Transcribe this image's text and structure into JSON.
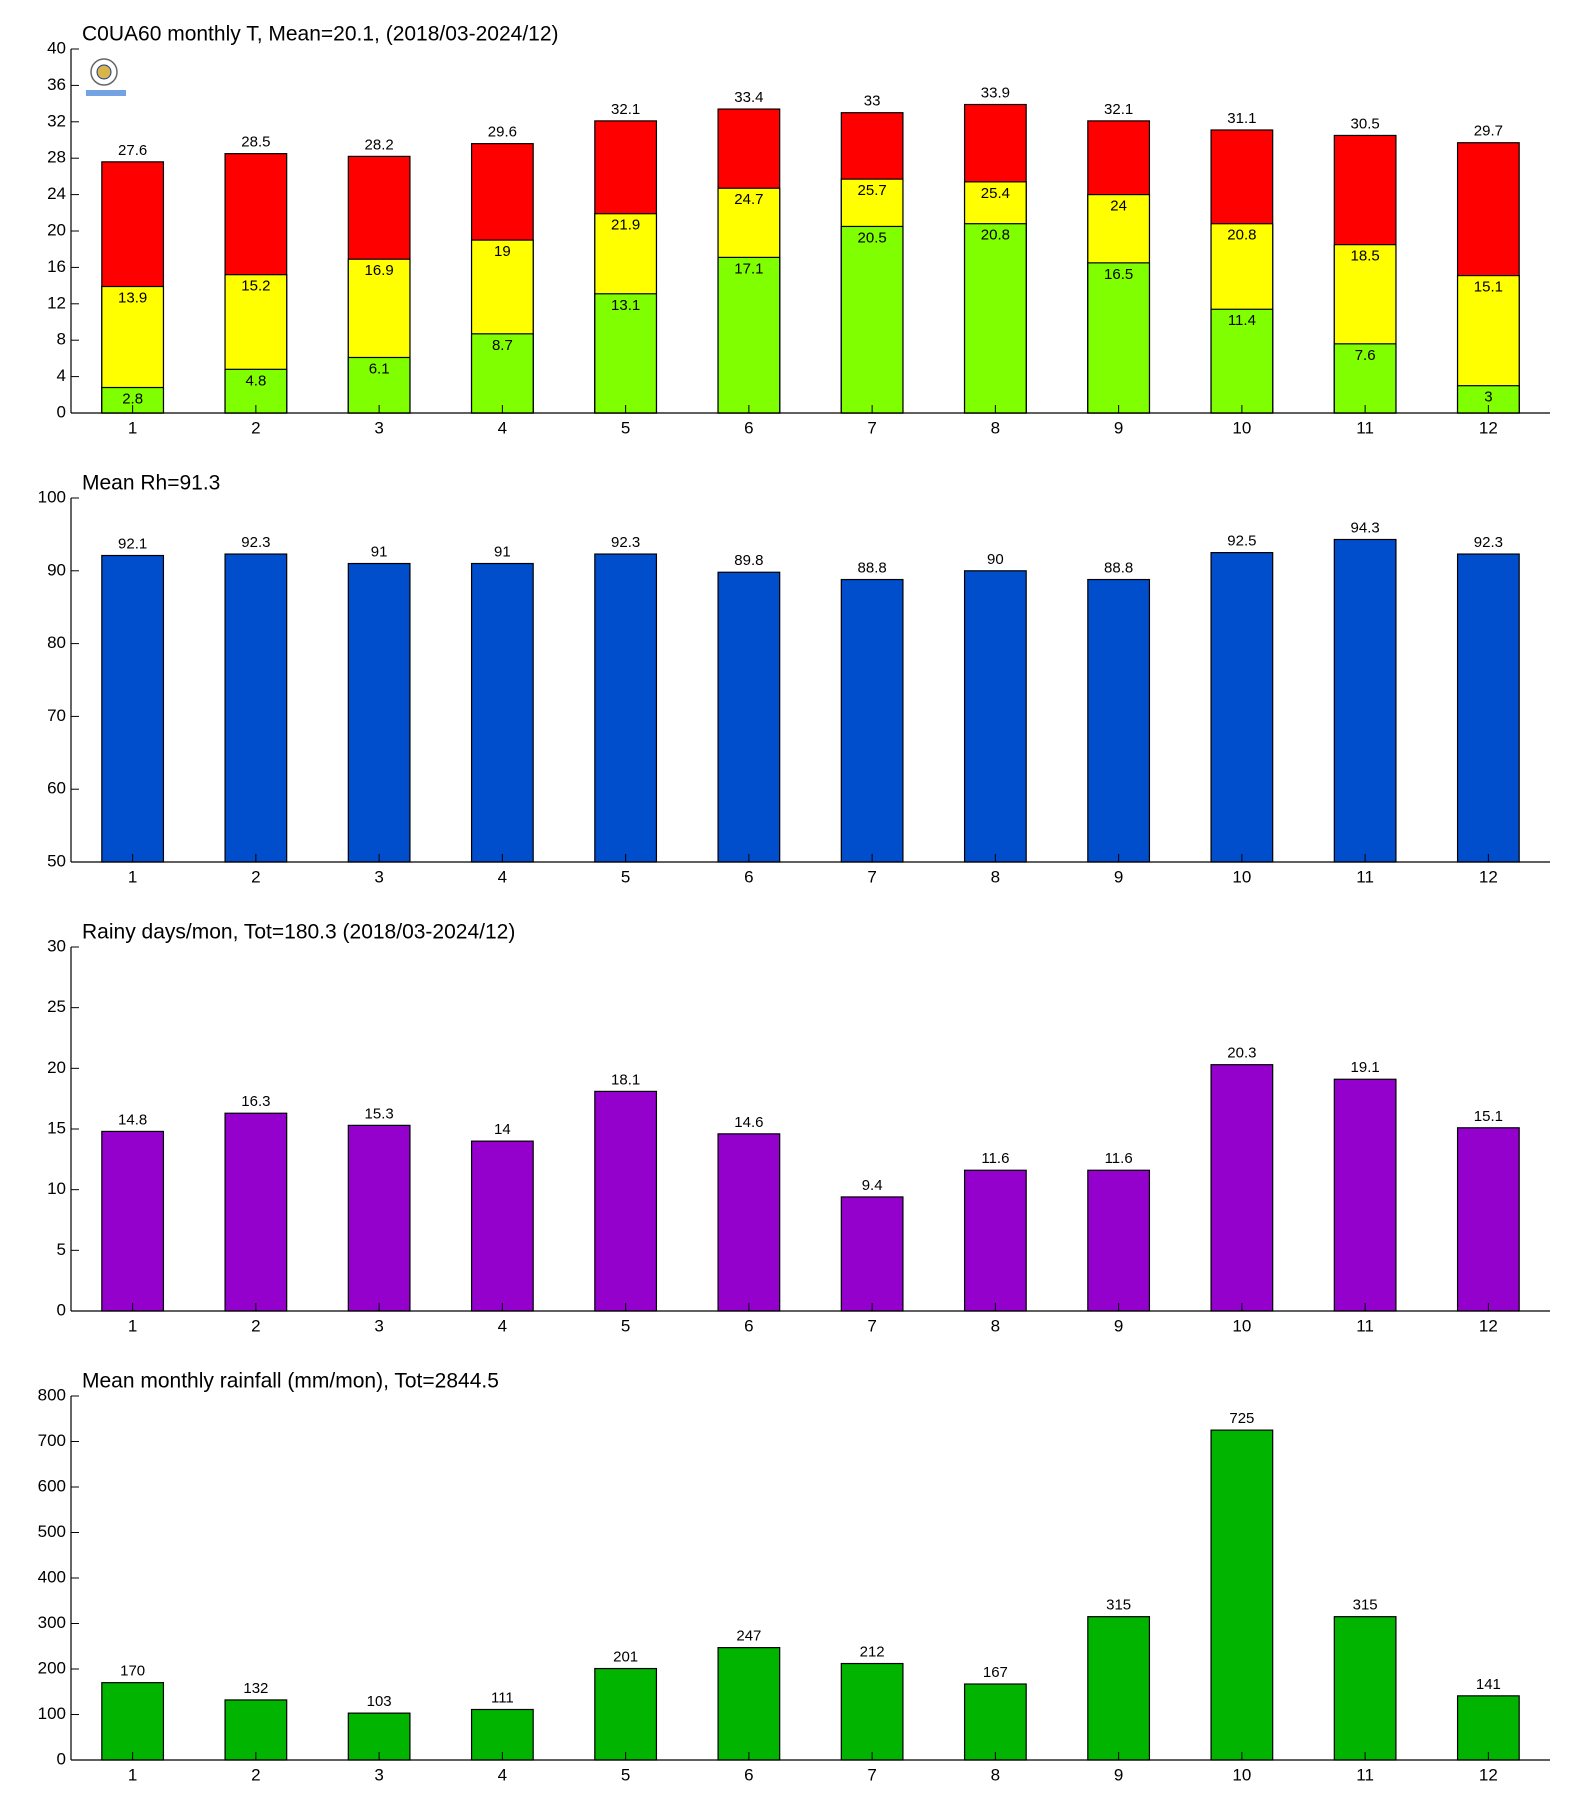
{
  "chart_data": [
    {
      "type": "bar",
      "title": "C0UA60 monthly T, Mean=20.1, (2018/03-2024/12)",
      "categories": [
        "1",
        "2",
        "3",
        "4",
        "5",
        "6",
        "7",
        "8",
        "9",
        "10",
        "11",
        "12"
      ],
      "series": [
        {
          "color": "#ff0000",
          "values": [
            27.6,
            28.5,
            28.2,
            29.6,
            32.1,
            33.4,
            33,
            33.9,
            32.1,
            31.1,
            30.5,
            29.7
          ]
        },
        {
          "color": "#ffff00",
          "values": [
            13.9,
            15.2,
            16.9,
            19,
            21.9,
            24.7,
            25.7,
            25.4,
            24,
            20.8,
            18.5,
            15.1
          ]
        },
        {
          "color": "#80ff00",
          "values": [
            2.8,
            4.8,
            6.1,
            8.7,
            13.1,
            17.1,
            20.5,
            20.8,
            16.5,
            11.4,
            7.6,
            3
          ]
        }
      ],
      "ylim": [
        0,
        40
      ],
      "yticks": [
        0,
        4,
        8,
        12,
        16,
        20,
        24,
        28,
        32,
        36,
        40
      ]
    },
    {
      "type": "bar",
      "title": "Mean Rh=91.3",
      "categories": [
        "1",
        "2",
        "3",
        "4",
        "5",
        "6",
        "7",
        "8",
        "9",
        "10",
        "11",
        "12"
      ],
      "series": [
        {
          "color": "#004ecc",
          "values": [
            92.1,
            92.3,
            91,
            91,
            92.3,
            89.8,
            88.8,
            90,
            88.8,
            92.5,
            94.3,
            92.3
          ]
        }
      ],
      "ylim": [
        50,
        100
      ],
      "yticks": [
        50,
        60,
        70,
        80,
        90,
        100
      ]
    },
    {
      "type": "bar",
      "title": "Rainy days/mon, Tot=180.3 (2018/03-2024/12)",
      "categories": [
        "1",
        "2",
        "3",
        "4",
        "5",
        "6",
        "7",
        "8",
        "9",
        "10",
        "11",
        "12"
      ],
      "series": [
        {
          "color": "#9400cc",
          "values": [
            14.8,
            16.3,
            15.3,
            14,
            18.1,
            14.6,
            9.4,
            11.6,
            11.6,
            20.3,
            19.1,
            15.1
          ]
        }
      ],
      "ylim": [
        0,
        30
      ],
      "yticks": [
        0,
        5,
        10,
        15,
        20,
        25,
        30
      ]
    },
    {
      "type": "bar",
      "title": "Mean monthly rainfall (mm/mon), Tot=2844.5",
      "categories": [
        "1",
        "2",
        "3",
        "4",
        "5",
        "6",
        "7",
        "8",
        "9",
        "10",
        "11",
        "12"
      ],
      "series": [
        {
          "color": "#00b400",
          "values": [
            170,
            132,
            103,
            111,
            201,
            247,
            212,
            167,
            315,
            725,
            315,
            141
          ]
        }
      ],
      "ylim": [
        0,
        800
      ],
      "yticks": [
        0,
        100,
        200,
        300,
        400,
        500,
        600,
        700,
        800
      ]
    }
  ]
}
